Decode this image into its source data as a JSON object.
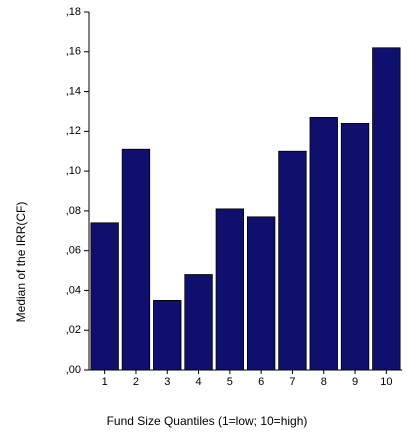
{
  "chart_data": {
    "type": "bar",
    "x_label": "Fund Size Quantiles (1=low; 10=high)",
    "y_label": "Median of the IRR(CF)",
    "categories": [
      "1",
      "2",
      "3",
      "4",
      "5",
      "6",
      "7",
      "8",
      "9",
      "10"
    ],
    "values": [
      0.074,
      0.111,
      0.035,
      0.048,
      0.081,
      0.077,
      0.11,
      0.127,
      0.124,
      0.162
    ],
    "color": "#0f0f6e",
    "ylim": [
      0,
      0.18
    ],
    "yticks": [
      {
        "value": 0,
        "label": ",00"
      },
      {
        "value": 0.02,
        "label": ",02"
      },
      {
        "value": 0.04,
        "label": ",04"
      },
      {
        "value": 0.06,
        "label": ",06"
      },
      {
        "value": 0.08,
        "label": ",08"
      },
      {
        "value": 0.1,
        "label": ",10"
      },
      {
        "value": 0.12,
        "label": ",12"
      },
      {
        "value": 0.14,
        "label": ",14"
      },
      {
        "value": 0.16,
        "label": ",16"
      },
      {
        "value": 0.18,
        "label": ",18"
      }
    ]
  }
}
